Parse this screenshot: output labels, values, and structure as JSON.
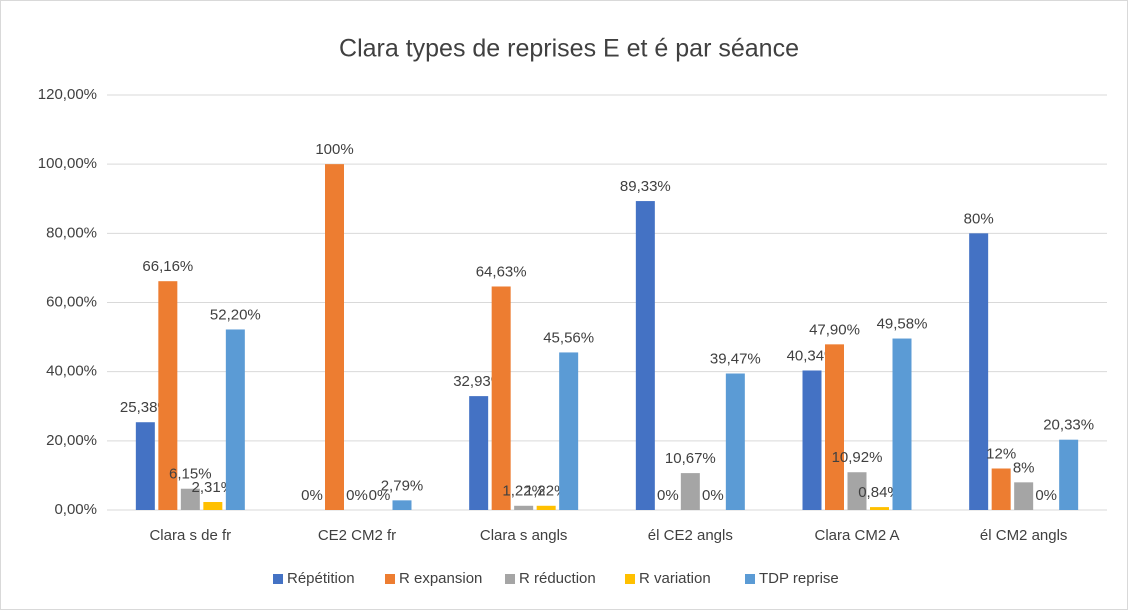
{
  "chart_data": {
    "type": "bar",
    "title": "Clara types de reprises E et é par séance",
    "categories": [
      "Clara s de fr",
      "CE2 CM2 fr",
      "Clara s angls",
      "él CE2 angls",
      "Clara CM2 A",
      "él CM2 angls"
    ],
    "series": [
      {
        "name": "Répétition",
        "color": "#4472c4",
        "values": [
          25.38,
          0,
          32.93,
          89.33,
          40.34,
          80
        ],
        "value_labels": [
          "25,38%",
          "0%",
          "32,93%",
          "89,33%",
          "40,34%",
          "80%"
        ]
      },
      {
        "name": "R expansion",
        "color": "#ed7d31",
        "values": [
          66.16,
          100,
          64.63,
          0,
          47.9,
          12
        ],
        "value_labels": [
          "66,16%",
          "100%",
          "64,63%",
          "0%",
          "47,90%",
          "12%"
        ]
      },
      {
        "name": "R réduction",
        "color": "#a5a5a5",
        "values": [
          6.15,
          0,
          1.22,
          10.67,
          10.92,
          8
        ],
        "value_labels": [
          "6,15%",
          "0%",
          "1,22%",
          "10,67%",
          "10,92%",
          "8%"
        ]
      },
      {
        "name": "R variation",
        "color": "#ffc000",
        "values": [
          2.31,
          0,
          1.22,
          0,
          0.84,
          0
        ],
        "value_labels": [
          "2,31%",
          "0%",
          "1,22%",
          "0%",
          "0,84%",
          "0%"
        ]
      },
      {
        "name": "TDP reprise",
        "color": "#5b9bd5",
        "values": [
          52.2,
          2.79,
          45.56,
          39.47,
          49.58,
          20.33
        ],
        "value_labels": [
          "52,20%",
          "2,79%",
          "45,56%",
          "39,47%",
          "49,58%",
          "20,33%"
        ]
      }
    ],
    "ylim": [
      0,
      120
    ],
    "yticks": [
      {
        "value": 0,
        "label": "0,00%"
      },
      {
        "value": 20,
        "label": "20,00%"
      },
      {
        "value": 40,
        "label": "40,00%"
      },
      {
        "value": 60,
        "label": "60,00%"
      },
      {
        "value": 80,
        "label": "80,00%"
      },
      {
        "value": 100,
        "label": "100,00%"
      },
      {
        "value": 120,
        "label": "120,00%"
      }
    ],
    "grid": true,
    "legend": "bottom"
  }
}
